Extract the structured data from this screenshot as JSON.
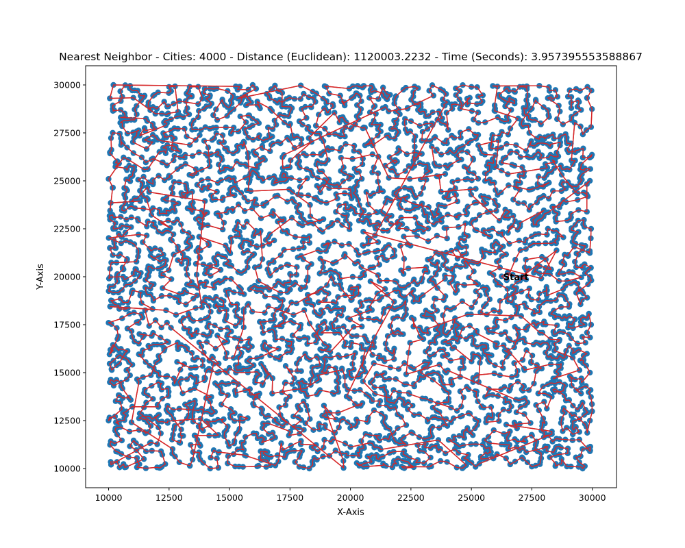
{
  "chart_data": {
    "type": "scatter",
    "title": "Nearest Neighbor - Cities: 4000 - Distance (Euclidean): 1120003.2232 - Time (Seconds): 3.957395553588867",
    "xlabel": "X-Axis",
    "ylabel": "Y-Axis",
    "xlim": [
      9050,
      31000
    ],
    "ylim": [
      9000,
      31000
    ],
    "x_ticks": [
      10000,
      12500,
      15000,
      17500,
      20000,
      22500,
      25000,
      27500,
      30000
    ],
    "y_ticks": [
      10000,
      12500,
      15000,
      17500,
      20000,
      22500,
      25000,
      27500,
      30000
    ],
    "grid": false,
    "cities": 4000,
    "point_color": "#1f77b4",
    "route_color": "#d62728",
    "start": {
      "label": "Start",
      "x": 26900,
      "y": 20000
    },
    "sample_points": [
      {
        "x": 10050,
        "y": 29300
      },
      {
        "x": 10200,
        "y": 30000
      },
      {
        "x": 10500,
        "y": 28700
      },
      {
        "x": 11200,
        "y": 29700
      },
      {
        "x": 12500,
        "y": 29900
      },
      {
        "x": 14200,
        "y": 29800
      },
      {
        "x": 16100,
        "y": 29800
      },
      {
        "x": 19000,
        "y": 29900
      },
      {
        "x": 21000,
        "y": 29700
      },
      {
        "x": 25000,
        "y": 29900
      },
      {
        "x": 27000,
        "y": 29900
      },
      {
        "x": 29800,
        "y": 29900
      },
      {
        "x": 29950,
        "y": 27800
      },
      {
        "x": 29900,
        "y": 25000
      },
      {
        "x": 29950,
        "y": 22500
      },
      {
        "x": 29900,
        "y": 20000
      },
      {
        "x": 29950,
        "y": 17500
      },
      {
        "x": 29900,
        "y": 15000
      },
      {
        "x": 29900,
        "y": 12500
      },
      {
        "x": 29900,
        "y": 10900
      },
      {
        "x": 29600,
        "y": 10000
      },
      {
        "x": 27500,
        "y": 10100
      },
      {
        "x": 25000,
        "y": 10300
      },
      {
        "x": 22700,
        "y": 10300
      },
      {
        "x": 21800,
        "y": 10400
      },
      {
        "x": 18300,
        "y": 10000
      },
      {
        "x": 14200,
        "y": 10000
      },
      {
        "x": 12200,
        "y": 10100
      },
      {
        "x": 10100,
        "y": 10200
      },
      {
        "x": 10000,
        "y": 12500
      },
      {
        "x": 10050,
        "y": 14500
      },
      {
        "x": 10000,
        "y": 17600
      },
      {
        "x": 10050,
        "y": 21500
      },
      {
        "x": 10000,
        "y": 25100
      }
    ]
  }
}
